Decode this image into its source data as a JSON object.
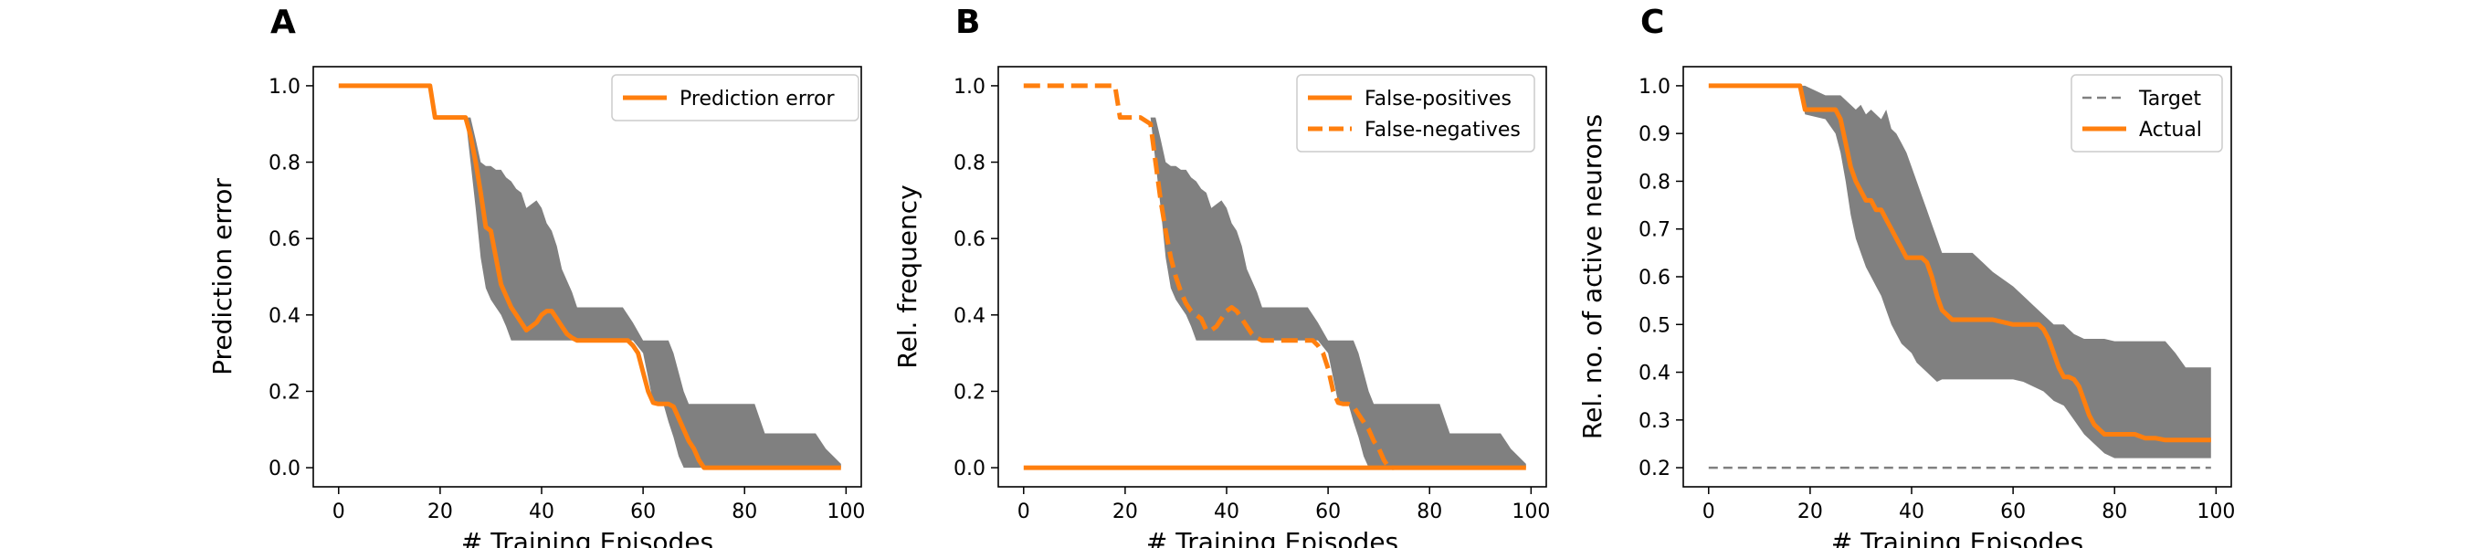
{
  "chart_data": [
    {
      "type": "line",
      "panel_label": "A",
      "xlabel": "# Training Episodes",
      "ylabel": "Prediction error",
      "xlim": [
        -5,
        103
      ],
      "ylim": [
        -0.05,
        1.05
      ],
      "xticks": [
        0,
        20,
        40,
        60,
        80,
        100
      ],
      "yticks": [
        0.0,
        0.2,
        0.4,
        0.6,
        0.8,
        1.0
      ],
      "xtick_labels": [
        "0",
        "20",
        "40",
        "60",
        "80",
        "100"
      ],
      "ytick_labels": [
        "0.0",
        "0.2",
        "0.4",
        "0.6",
        "0.8",
        "1.0"
      ],
      "legend_position": "top-right",
      "series": [
        {
          "name": "Prediction error",
          "color": "#ff7f0e",
          "style": "solid",
          "x": [
            0,
            18,
            19,
            25,
            26,
            27,
            28,
            29,
            30,
            31,
            32,
            33,
            34,
            35,
            36,
            37,
            38,
            39,
            40,
            41,
            42,
            43,
            44,
            45,
            46,
            47,
            55,
            57,
            58,
            59,
            60,
            61,
            62,
            63,
            64,
            65,
            66,
            67,
            68,
            69,
            70,
            71,
            72,
            73,
            99
          ],
          "y": [
            1.0,
            1.0,
            0.917,
            0.917,
            0.87,
            0.8,
            0.72,
            0.63,
            0.62,
            0.55,
            0.48,
            0.45,
            0.42,
            0.4,
            0.38,
            0.36,
            0.37,
            0.38,
            0.4,
            0.41,
            0.41,
            0.39,
            0.37,
            0.35,
            0.34,
            0.333,
            0.333,
            0.333,
            0.32,
            0.3,
            0.25,
            0.2,
            0.17,
            0.167,
            0.167,
            0.167,
            0.16,
            0.13,
            0.1,
            0.07,
            0.05,
            0.02,
            0.0,
            0.0,
            0.0
          ]
        }
      ],
      "band": {
        "color": "#808080",
        "x": [
          0,
          18,
          19,
          25,
          26,
          27,
          28,
          29,
          30,
          31,
          32,
          33,
          34,
          35,
          36,
          37,
          38,
          39,
          40,
          41,
          42,
          43,
          44,
          46,
          47,
          48,
          52,
          56,
          57,
          58,
          60,
          62,
          64,
          65,
          66,
          67,
          68,
          69,
          70,
          71,
          72,
          74,
          78,
          82,
          84,
          88,
          90,
          94,
          96,
          99
        ],
        "upper": [
          1.0,
          1.0,
          0.917,
          0.917,
          0.917,
          0.86,
          0.8,
          0.79,
          0.79,
          0.78,
          0.78,
          0.76,
          0.75,
          0.73,
          0.72,
          0.68,
          0.69,
          0.7,
          0.68,
          0.64,
          0.62,
          0.58,
          0.52,
          0.46,
          0.42,
          0.42,
          0.42,
          0.42,
          0.4,
          0.38,
          0.333,
          0.333,
          0.333,
          0.333,
          0.3,
          0.25,
          0.2,
          0.167,
          0.167,
          0.167,
          0.167,
          0.167,
          0.167,
          0.167,
          0.09,
          0.09,
          0.09,
          0.09,
          0.05,
          0.01
        ],
        "lower": [
          1.0,
          1.0,
          0.917,
          0.917,
          0.8,
          0.68,
          0.55,
          0.47,
          0.44,
          0.42,
          0.4,
          0.37,
          0.333,
          0.333,
          0.333,
          0.333,
          0.333,
          0.333,
          0.333,
          0.333,
          0.333,
          0.333,
          0.333,
          0.333,
          0.333,
          0.333,
          0.333,
          0.333,
          0.333,
          0.333,
          0.3,
          0.17,
          0.167,
          0.12,
          0.08,
          0.03,
          0.0,
          0.0,
          0.0,
          0.0,
          0.0,
          0.0,
          0.0,
          0.0,
          0.0,
          0.0,
          0.0,
          0.0,
          0.0,
          0.0
        ]
      }
    },
    {
      "type": "line",
      "panel_label": "B",
      "xlabel": "# Training Episodes",
      "ylabel": "Rel. frequency",
      "xlim": [
        -5,
        103
      ],
      "ylim": [
        -0.05,
        1.05
      ],
      "xticks": [
        0,
        20,
        40,
        60,
        80,
        100
      ],
      "yticks": [
        0.0,
        0.2,
        0.4,
        0.6,
        0.8,
        1.0
      ],
      "xtick_labels": [
        "0",
        "20",
        "40",
        "60",
        "80",
        "100"
      ],
      "ytick_labels": [
        "0.0",
        "0.2",
        "0.4",
        "0.6",
        "0.8",
        "1.0"
      ],
      "legend_position": "top-right",
      "series": [
        {
          "name": "False-positives",
          "color": "#ff7f0e",
          "style": "solid",
          "x": [
            0,
            99
          ],
          "y": [
            0.0,
            0.0
          ]
        },
        {
          "name": "False-negatives",
          "color": "#ff7f0e",
          "style": "dashed",
          "x": [
            0,
            18,
            19,
            23,
            25,
            26,
            27,
            28,
            29,
            30,
            31,
            32,
            33,
            34,
            35,
            36,
            37,
            38,
            39,
            40,
            41,
            42,
            43,
            44,
            45,
            46,
            47,
            55,
            57,
            58,
            59,
            60,
            61,
            62,
            63,
            64,
            65,
            66,
            67,
            68,
            69,
            70,
            71,
            72,
            73
          ],
          "y": [
            1.0,
            1.0,
            0.917,
            0.917,
            0.9,
            0.8,
            0.7,
            0.62,
            0.55,
            0.5,
            0.46,
            0.43,
            0.41,
            0.4,
            0.39,
            0.36,
            0.36,
            0.37,
            0.39,
            0.41,
            0.42,
            0.41,
            0.39,
            0.37,
            0.35,
            0.34,
            0.333,
            0.333,
            0.333,
            0.32,
            0.3,
            0.26,
            0.2,
            0.17,
            0.167,
            0.167,
            0.16,
            0.14,
            0.12,
            0.1,
            0.07,
            0.05,
            0.02,
            0.0,
            0.0
          ]
        }
      ],
      "band": {
        "color": "#808080",
        "x": [
          0,
          18,
          19,
          25,
          26,
          27,
          28,
          29,
          30,
          31,
          32,
          33,
          34,
          35,
          36,
          37,
          38,
          39,
          40,
          41,
          42,
          43,
          44,
          46,
          47,
          48,
          52,
          56,
          57,
          58,
          60,
          62,
          64,
          65,
          66,
          67,
          68,
          69,
          70,
          71,
          72,
          74,
          78,
          82,
          84,
          88,
          90,
          94,
          96,
          99
        ],
        "upper": [
          1.0,
          1.0,
          0.917,
          0.917,
          0.917,
          0.86,
          0.8,
          0.79,
          0.79,
          0.78,
          0.78,
          0.76,
          0.75,
          0.73,
          0.72,
          0.68,
          0.69,
          0.7,
          0.68,
          0.64,
          0.62,
          0.58,
          0.52,
          0.46,
          0.42,
          0.42,
          0.42,
          0.42,
          0.4,
          0.38,
          0.333,
          0.333,
          0.333,
          0.333,
          0.3,
          0.25,
          0.2,
          0.167,
          0.167,
          0.167,
          0.167,
          0.167,
          0.167,
          0.167,
          0.09,
          0.09,
          0.09,
          0.09,
          0.05,
          0.01
        ],
        "lower": [
          1.0,
          1.0,
          0.917,
          0.917,
          0.8,
          0.68,
          0.55,
          0.47,
          0.44,
          0.42,
          0.4,
          0.37,
          0.333,
          0.333,
          0.333,
          0.333,
          0.333,
          0.333,
          0.333,
          0.333,
          0.333,
          0.333,
          0.333,
          0.333,
          0.333,
          0.333,
          0.333,
          0.333,
          0.333,
          0.333,
          0.3,
          0.17,
          0.167,
          0.12,
          0.08,
          0.03,
          0.0,
          0.0,
          0.0,
          0.0,
          0.0,
          0.0,
          0.0,
          0.0,
          0.0,
          0.0,
          0.0,
          0.0,
          0.0,
          0.0
        ]
      }
    },
    {
      "type": "line",
      "panel_label": "C",
      "xlabel": "# Training Episodes",
      "ylabel": "Rel. no. of active neurons",
      "xlim": [
        -5,
        103
      ],
      "ylim": [
        0.16,
        1.04
      ],
      "xticks": [
        0,
        20,
        40,
        60,
        80,
        100
      ],
      "yticks": [
        0.2,
        0.3,
        0.4,
        0.5,
        0.6,
        0.7,
        0.8,
        0.9,
        1.0
      ],
      "xtick_labels": [
        "0",
        "20",
        "40",
        "60",
        "80",
        "100"
      ],
      "ytick_labels": [
        "0.2",
        "0.3",
        "0.4",
        "0.5",
        "0.6",
        "0.7",
        "0.8",
        "0.9",
        "1.0"
      ],
      "legend_position": "top-right",
      "series": [
        {
          "name": "Target",
          "color": "#808080",
          "style": "dashed",
          "x": [
            0,
            99
          ],
          "y": [
            0.2,
            0.2
          ]
        },
        {
          "name": "Actual",
          "color": "#ff7f0e",
          "style": "solid",
          "x": [
            0,
            18,
            19,
            25,
            26,
            27,
            28,
            29,
            30,
            31,
            32,
            33,
            34,
            35,
            36,
            37,
            38,
            39,
            40,
            41,
            42,
            43,
            44,
            45,
            46,
            47,
            48,
            52,
            56,
            60,
            61,
            62,
            63,
            64,
            65,
            66,
            67,
            68,
            69,
            70,
            71,
            72,
            73,
            74,
            75,
            76,
            77,
            78,
            79,
            80,
            84,
            86,
            88,
            90,
            94,
            99
          ],
          "y": [
            1.0,
            1.0,
            0.95,
            0.95,
            0.93,
            0.88,
            0.83,
            0.8,
            0.78,
            0.76,
            0.76,
            0.74,
            0.74,
            0.72,
            0.7,
            0.68,
            0.66,
            0.64,
            0.64,
            0.64,
            0.64,
            0.63,
            0.6,
            0.56,
            0.53,
            0.52,
            0.51,
            0.51,
            0.51,
            0.5,
            0.5,
            0.5,
            0.5,
            0.5,
            0.5,
            0.49,
            0.47,
            0.44,
            0.41,
            0.39,
            0.39,
            0.385,
            0.37,
            0.34,
            0.31,
            0.29,
            0.28,
            0.27,
            0.27,
            0.27,
            0.27,
            0.262,
            0.262,
            0.258,
            0.258,
            0.258
          ]
        }
      ],
      "band": {
        "color": "#808080",
        "x": [
          0,
          18,
          19,
          23,
          25,
          26,
          27,
          28,
          29,
          30,
          31,
          32,
          33,
          34,
          35,
          36,
          37,
          38,
          39,
          40,
          41,
          42,
          43,
          44,
          45,
          46,
          48,
          50,
          52,
          54,
          56,
          60,
          62,
          64,
          66,
          68,
          70,
          72,
          74,
          76,
          78,
          80,
          82,
          84,
          86,
          88,
          90,
          92,
          94,
          96,
          99
        ],
        "upper": [
          1.0,
          1.0,
          1.0,
          0.98,
          0.98,
          0.98,
          0.97,
          0.96,
          0.95,
          0.96,
          0.94,
          0.95,
          0.94,
          0.93,
          0.95,
          0.91,
          0.9,
          0.88,
          0.86,
          0.83,
          0.8,
          0.77,
          0.74,
          0.71,
          0.68,
          0.65,
          0.65,
          0.65,
          0.65,
          0.63,
          0.61,
          0.58,
          0.56,
          0.54,
          0.52,
          0.5,
          0.5,
          0.48,
          0.47,
          0.47,
          0.47,
          0.465,
          0.465,
          0.465,
          0.465,
          0.465,
          0.465,
          0.44,
          0.41,
          0.41,
          0.41
        ],
        "lower": [
          1.0,
          1.0,
          0.94,
          0.93,
          0.9,
          0.86,
          0.8,
          0.73,
          0.68,
          0.65,
          0.62,
          0.6,
          0.58,
          0.56,
          0.53,
          0.5,
          0.48,
          0.46,
          0.45,
          0.44,
          0.42,
          0.41,
          0.4,
          0.39,
          0.38,
          0.385,
          0.385,
          0.385,
          0.385,
          0.385,
          0.385,
          0.385,
          0.38,
          0.37,
          0.36,
          0.34,
          0.33,
          0.3,
          0.27,
          0.25,
          0.23,
          0.22,
          0.22,
          0.22,
          0.22,
          0.22,
          0.22,
          0.22,
          0.22,
          0.22,
          0.22
        ]
      }
    }
  ]
}
